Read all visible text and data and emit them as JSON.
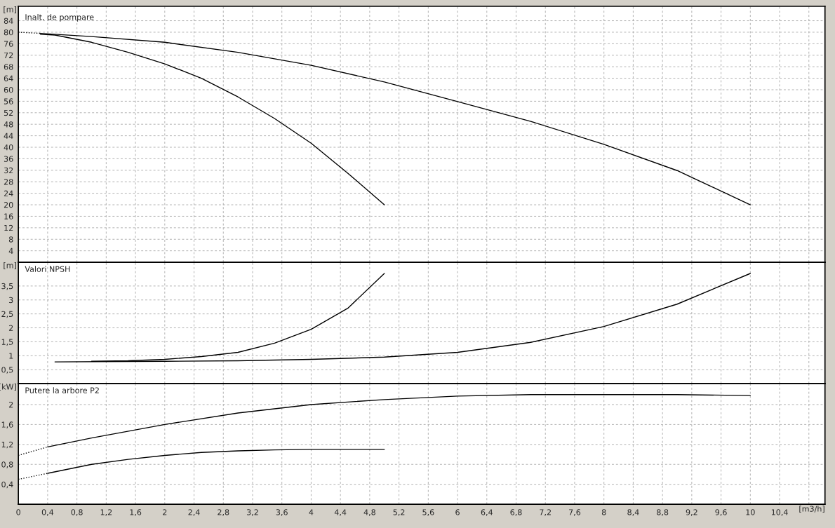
{
  "chart_data": [
    {
      "type": "line",
      "title": "Inalt. de pompare",
      "ylabel": "[m]",
      "xlim": [
        0,
        11.02
      ],
      "ylim": [
        0,
        89
      ],
      "xticks": [
        {
          "value": 0,
          "label": null
        },
        {
          "value": 0.4,
          "label": null
        },
        {
          "value": 0.8,
          "label": null
        },
        {
          "value": 1.2,
          "label": null
        },
        {
          "value": 1.6,
          "label": null
        },
        {
          "value": 2,
          "label": null
        },
        {
          "value": 2.4,
          "label": null
        },
        {
          "value": 2.8,
          "label": null
        },
        {
          "value": 3.2,
          "label": null
        },
        {
          "value": 3.6,
          "label": null
        },
        {
          "value": 4,
          "label": null
        },
        {
          "value": 4.4,
          "label": null
        },
        {
          "value": 4.8,
          "label": null
        },
        {
          "value": 5.2,
          "label": null
        },
        {
          "value": 5.6,
          "label": null
        },
        {
          "value": 6,
          "label": null
        },
        {
          "value": 6.4,
          "label": null
        },
        {
          "value": 6.8,
          "label": null
        },
        {
          "value": 7.2,
          "label": null
        },
        {
          "value": 7.6,
          "label": null
        },
        {
          "value": 8,
          "label": null
        },
        {
          "value": 8.4,
          "label": null
        },
        {
          "value": 8.8,
          "label": null
        },
        {
          "value": 9.2,
          "label": null
        },
        {
          "value": 9.6,
          "label": null
        },
        {
          "value": 10,
          "label": null
        },
        {
          "value": 10.4,
          "label": null
        },
        {
          "value": 10.8,
          "label": null
        }
      ],
      "yticks": [
        4,
        8,
        12,
        16,
        20,
        24,
        28,
        32,
        36,
        40,
        44,
        48,
        52,
        56,
        60,
        64,
        68,
        72,
        76,
        80,
        84
      ],
      "grid": true,
      "tick_labels": "y",
      "series": [
        {
          "color": "#000000",
          "line_style": "dotted",
          "x": [
            0,
            0.3
          ],
          "values": [
            80,
            79.6
          ]
        },
        {
          "color": "#000000",
          "line_style": "solid",
          "x": [
            0.3,
            1,
            2,
            3,
            4,
            5,
            6,
            7,
            8,
            9,
            10
          ],
          "values": [
            79.6,
            78.5,
            76.5,
            73,
            68.5,
            62.7,
            55.9,
            49,
            41,
            31.9,
            20
          ]
        },
        {
          "color": "#000000",
          "line_style": "solid",
          "x": [
            0.3,
            0.5,
            1,
            1.5,
            2,
            2.5,
            3,
            3.5,
            4,
            4.5,
            5
          ],
          "values": [
            79.3,
            79,
            76.5,
            73,
            69,
            64,
            57.5,
            50,
            41.4,
            31,
            20
          ]
        }
      ]
    },
    {
      "type": "line",
      "title": "Valori NPSH",
      "ylabel": "[m]",
      "xlim": [
        0,
        11.02
      ],
      "ylim": [
        0,
        4.35
      ],
      "xticks": [
        {
          "value": 0,
          "label": null
        },
        {
          "value": 0.4,
          "label": null
        },
        {
          "value": 0.8,
          "label": null
        },
        {
          "value": 1.2,
          "label": null
        },
        {
          "value": 1.6,
          "label": null
        },
        {
          "value": 2,
          "label": null
        },
        {
          "value": 2.4,
          "label": null
        },
        {
          "value": 2.8,
          "label": null
        },
        {
          "value": 3.2,
          "label": null
        },
        {
          "value": 3.6,
          "label": null
        },
        {
          "value": 4,
          "label": null
        },
        {
          "value": 4.4,
          "label": null
        },
        {
          "value": 4.8,
          "label": null
        },
        {
          "value": 5.2,
          "label": null
        },
        {
          "value": 5.6,
          "label": null
        },
        {
          "value": 6,
          "label": null
        },
        {
          "value": 6.4,
          "label": null
        },
        {
          "value": 6.8,
          "label": null
        },
        {
          "value": 7.2,
          "label": null
        },
        {
          "value": 7.6,
          "label": null
        },
        {
          "value": 8,
          "label": null
        },
        {
          "value": 8.4,
          "label": null
        },
        {
          "value": 8.8,
          "label": null
        },
        {
          "value": 9.2,
          "label": null
        },
        {
          "value": 9.6,
          "label": null
        },
        {
          "value": 10,
          "label": null
        },
        {
          "value": 10.4,
          "label": null
        },
        {
          "value": 10.8,
          "label": null
        }
      ],
      "yticks": [
        {
          "value": 0.5,
          "label": "0,5"
        },
        {
          "value": 1,
          "label": "1"
        },
        {
          "value": 1.5,
          "label": "1,5"
        },
        {
          "value": 2,
          "label": "2"
        },
        {
          "value": 2.5,
          "label": "2,5"
        },
        {
          "value": 3,
          "label": "3"
        },
        {
          "value": 3.5,
          "label": "3,5"
        }
      ],
      "grid": true,
      "tick_labels": "y",
      "series": [
        {
          "color": "#000000",
          "line_style": "solid",
          "x": [
            0.5,
            2,
            3,
            4,
            5,
            6,
            7,
            8,
            9,
            10
          ],
          "values": [
            0.78,
            0.8,
            0.82,
            0.87,
            0.95,
            1.12,
            1.48,
            2.05,
            2.85,
            3.95
          ]
        },
        {
          "color": "#000000",
          "line_style": "solid",
          "x": [
            1,
            1.5,
            2,
            2.5,
            3,
            3.5,
            4,
            4.5,
            5
          ],
          "values": [
            0.8,
            0.82,
            0.87,
            0.97,
            1.12,
            1.45,
            1.95,
            2.7,
            3.95
          ]
        }
      ]
    },
    {
      "type": "line",
      "title": "Putere la arbore P2",
      "ylabel": "[kW]",
      "xlabel": "[m3/h]",
      "xlim": [
        0,
        11.02
      ],
      "ylim": [
        0,
        2.42
      ],
      "xticks": [
        {
          "value": 0,
          "label": "0"
        },
        {
          "value": 0.4,
          "label": "0,4"
        },
        {
          "value": 0.8,
          "label": "0,8"
        },
        {
          "value": 1.2,
          "label": "1,2"
        },
        {
          "value": 1.6,
          "label": "1,6"
        },
        {
          "value": 2,
          "label": "2"
        },
        {
          "value": 2.4,
          "label": "2,4"
        },
        {
          "value": 2.8,
          "label": "2,8"
        },
        {
          "value": 3.2,
          "label": "3,2"
        },
        {
          "value": 3.6,
          "label": "3,6"
        },
        {
          "value": 4,
          "label": "4"
        },
        {
          "value": 4.4,
          "label": "4,4"
        },
        {
          "value": 4.8,
          "label": "4,8"
        },
        {
          "value": 5.2,
          "label": "5,2"
        },
        {
          "value": 5.6,
          "label": "5,6"
        },
        {
          "value": 6,
          "label": "6"
        },
        {
          "value": 6.4,
          "label": "6,4"
        },
        {
          "value": 6.8,
          "label": "6,8"
        },
        {
          "value": 7.2,
          "label": "7,2"
        },
        {
          "value": 7.6,
          "label": "7,6"
        },
        {
          "value": 8,
          "label": "8"
        },
        {
          "value": 8.4,
          "label": "8,4"
        },
        {
          "value": 8.8,
          "label": "8,8"
        },
        {
          "value": 9.2,
          "label": "9,2"
        },
        {
          "value": 9.6,
          "label": "9,6"
        },
        {
          "value": 10,
          "label": "10"
        },
        {
          "value": 10.4,
          "label": "10,4"
        },
        {
          "value": 10.8,
          "label": null
        }
      ],
      "yticks": [
        {
          "value": 0.4,
          "label": "0,4"
        },
        {
          "value": 0.8,
          "label": "0,8"
        },
        {
          "value": 1.2,
          "label": "1,2"
        },
        {
          "value": 1.6,
          "label": "1,6"
        },
        {
          "value": 2,
          "label": "2"
        }
      ],
      "grid": true,
      "series": [
        {
          "color": "#000000",
          "line_style": "dotted",
          "x": [
            0,
            0.4
          ],
          "values": [
            0.98,
            1.15
          ]
        },
        {
          "color": "#000000",
          "line_style": "solid",
          "x": [
            0.4,
            1,
            2,
            3,
            4,
            5,
            6,
            7,
            8,
            9,
            10
          ],
          "values": [
            1.15,
            1.33,
            1.6,
            1.83,
            2.0,
            2.1,
            2.17,
            2.2,
            2.2,
            2.2,
            2.18
          ]
        },
        {
          "color": "#000000",
          "line_style": "dotted",
          "x": [
            0,
            0.4
          ],
          "values": [
            0.5,
            0.62
          ]
        },
        {
          "color": "#000000",
          "line_style": "solid",
          "x": [
            0.4,
            1,
            1.5,
            2,
            2.5,
            3,
            3.5,
            4,
            5
          ],
          "values": [
            0.62,
            0.8,
            0.9,
            0.98,
            1.04,
            1.07,
            1.09,
            1.1,
            1.1
          ]
        }
      ]
    }
  ]
}
